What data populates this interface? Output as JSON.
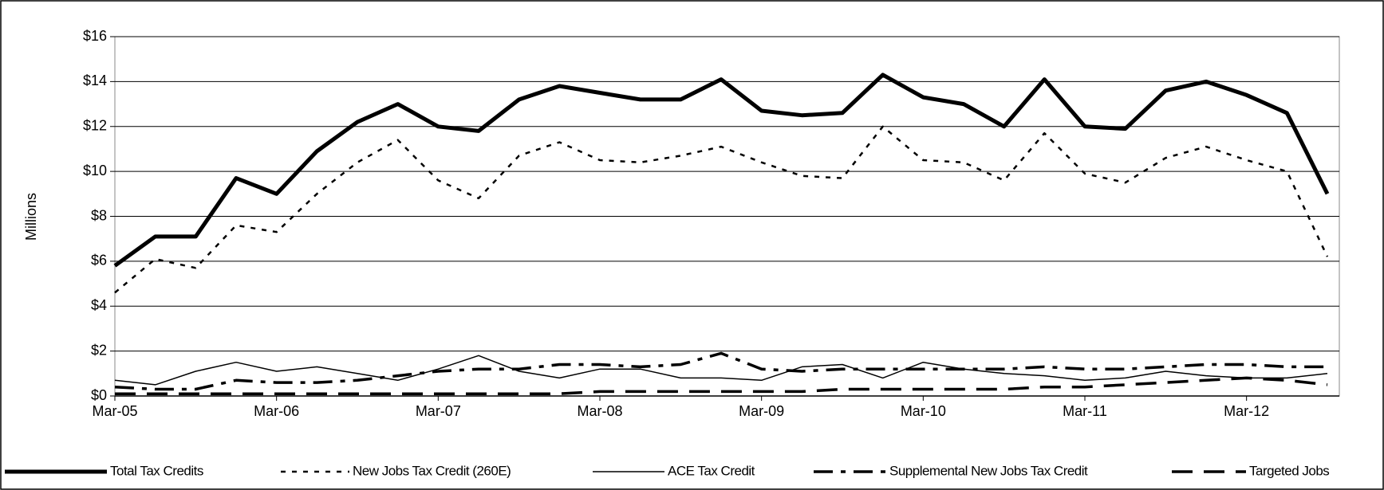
{
  "chart_data": {
    "type": "line",
    "y_label": "Millions",
    "categories": [
      "Mar-05",
      null,
      null,
      null,
      "Mar-06",
      null,
      null,
      null,
      "Mar-07",
      null,
      null,
      null,
      "Mar-08",
      null,
      null,
      null,
      "Mar-09",
      null,
      null,
      null,
      "Mar-10",
      null,
      null,
      null,
      "Mar-11",
      null,
      null,
      null,
      "Mar-12",
      null,
      null
    ],
    "ylim": [
      0,
      16
    ],
    "yticks": [
      {
        "value": 0,
        "label": "$0"
      },
      {
        "value": 2,
        "label": "$2"
      },
      {
        "value": 4,
        "label": "$4"
      },
      {
        "value": 6,
        "label": "$6"
      },
      {
        "value": 8,
        "label": "$8"
      },
      {
        "value": 10,
        "label": "$10"
      },
      {
        "value": 12,
        "label": "$12"
      },
      {
        "value": 14,
        "label": "$14"
      },
      {
        "value": 16,
        "label": "$16"
      }
    ],
    "grid": true,
    "legend": "bottom",
    "series": [
      {
        "name": "Total Tax Credits",
        "color": "#000000",
        "style": "thick",
        "values": [
          5.8,
          7.1,
          7.1,
          9.7,
          9.0,
          10.9,
          12.2,
          13.0,
          12.0,
          11.8,
          13.2,
          13.8,
          13.5,
          13.2,
          13.2,
          14.1,
          12.7,
          12.5,
          12.6,
          14.3,
          13.3,
          13.0,
          12.0,
          14.1,
          12.0,
          11.9,
          13.6,
          14.0,
          13.4,
          12.6,
          9.0
        ]
      },
      {
        "name": "New Jobs Tax Credit (260E)",
        "color": "#000000",
        "style": "dotted",
        "values": [
          4.6,
          6.1,
          5.7,
          7.6,
          7.3,
          9.0,
          10.4,
          11.4,
          9.6,
          8.8,
          10.7,
          11.3,
          10.5,
          10.4,
          10.7,
          11.1,
          10.4,
          9.8,
          9.7,
          12.0,
          10.5,
          10.4,
          9.6,
          11.7,
          9.9,
          9.5,
          10.6,
          11.1,
          10.5,
          10.0,
          6.2
        ]
      },
      {
        "name": "ACE Tax Credit",
        "color": "#000000",
        "style": "solid",
        "values": [
          0.7,
          0.5,
          1.1,
          1.5,
          1.1,
          1.3,
          1.0,
          0.7,
          1.2,
          1.8,
          1.1,
          0.8,
          1.2,
          1.2,
          0.8,
          0.8,
          0.7,
          1.3,
          1.4,
          0.8,
          1.5,
          1.2,
          1.0,
          0.9,
          0.7,
          0.8,
          1.1,
          0.9,
          0.8,
          0.8,
          1.0
        ]
      },
      {
        "name": "Supplemental New Jobs Tax Credit",
        "color": "#000000",
        "style": "dashdot",
        "values": [
          0.4,
          0.3,
          0.3,
          0.7,
          0.6,
          0.6,
          0.7,
          0.9,
          1.1,
          1.2,
          1.2,
          1.4,
          1.4,
          1.3,
          1.4,
          1.9,
          1.2,
          1.1,
          1.2,
          1.2,
          1.2,
          1.2,
          1.2,
          1.3,
          1.2,
          1.2,
          1.3,
          1.4,
          1.4,
          1.3,
          1.3
        ]
      },
      {
        "name": "Targeted Jobs",
        "color": "#000000",
        "style": "dashed",
        "values": [
          0.1,
          0.1,
          0.1,
          0.1,
          0.1,
          0.1,
          0.1,
          0.1,
          0.1,
          0.1,
          0.1,
          0.1,
          0.2,
          0.2,
          0.2,
          0.2,
          0.2,
          0.2,
          0.3,
          0.3,
          0.3,
          0.3,
          0.3,
          0.4,
          0.4,
          0.5,
          0.6,
          0.7,
          0.8,
          0.7,
          0.5
        ]
      }
    ]
  }
}
